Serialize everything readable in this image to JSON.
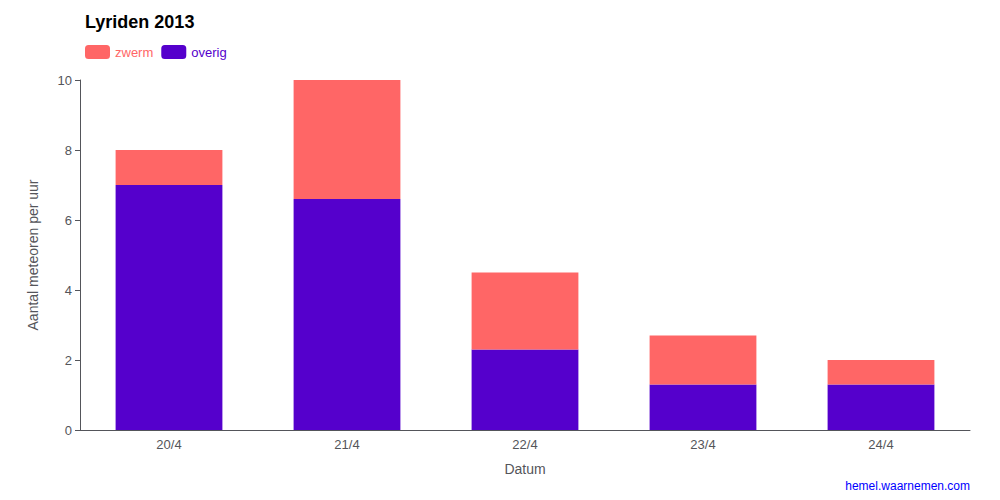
{
  "chart_data": {
    "type": "bar",
    "title": "Lyriden 2013",
    "xlabel": "Datum",
    "ylabel": "Aantal meteoren per uur",
    "categories": [
      "20/4",
      "21/4",
      "22/4",
      "23/4",
      "24/4"
    ],
    "series": [
      {
        "name": "overig",
        "color": "#5500cc",
        "values": [
          7.0,
          6.6,
          2.3,
          1.3,
          1.3
        ]
      },
      {
        "name": "zwerm",
        "color": "#ff6666",
        "values": [
          1.0,
          3.4,
          2.2,
          1.4,
          0.7
        ]
      }
    ],
    "stacked": true,
    "ylim": [
      0,
      10
    ],
    "yticks": [
      0,
      2,
      4,
      6,
      8,
      10
    ],
    "grid": false,
    "legend": "upper left",
    "annotations": [
      "hemel.waarnemen.com"
    ]
  }
}
